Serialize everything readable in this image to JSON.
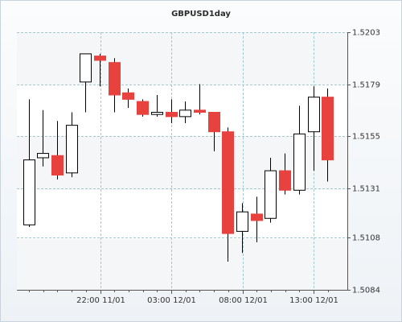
{
  "chart_data": {
    "type": "candlestick",
    "title": "GBPUSD1day",
    "y_ticks": [
      "1.5203",
      "1.5179",
      "1.5155",
      "1.5131",
      "1.5108",
      "1.5084"
    ],
    "y_tick_values": [
      1.5203,
      1.5179,
      1.5155,
      1.5131,
      1.5108,
      1.5084
    ],
    "ylim": [
      1.5084,
      1.5203
    ],
    "x_ticks": [
      "22:00 11/01",
      "03:00 12/01",
      "08:00 12/01",
      "13:00 12/01"
    ],
    "grid": true,
    "colors": {
      "up_fill": "#ffffff",
      "down_fill": "#e8423f",
      "wick": "#000000",
      "grid": "#9fc9cf"
    },
    "candles": [
      {
        "open": 1.5114,
        "high": 1.5172,
        "low": 1.5113,
        "close": 1.5144
      },
      {
        "open": 1.5145,
        "high": 1.5167,
        "low": 1.5141,
        "close": 1.5147
      },
      {
        "open": 1.5146,
        "high": 1.5162,
        "low": 1.5135,
        "close": 1.5137
      },
      {
        "open": 1.5138,
        "high": 1.5166,
        "low": 1.5136,
        "close": 1.516
      },
      {
        "open": 1.518,
        "high": 1.5193,
        "low": 1.5166,
        "close": 1.5193
      },
      {
        "open": 1.5192,
        "high": 1.5193,
        "low": 1.5178,
        "close": 1.519
      },
      {
        "open": 1.5189,
        "high": 1.5191,
        "low": 1.5166,
        "close": 1.5174
      },
      {
        "open": 1.5175,
        "high": 1.5177,
        "low": 1.5168,
        "close": 1.5172
      },
      {
        "open": 1.5171,
        "high": 1.5172,
        "low": 1.5164,
        "close": 1.5165
      },
      {
        "open": 1.5165,
        "high": 1.5174,
        "low": 1.5164,
        "close": 1.5166
      },
      {
        "open": 1.5166,
        "high": 1.5172,
        "low": 1.5161,
        "close": 1.5164
      },
      {
        "open": 1.5164,
        "high": 1.5171,
        "low": 1.5161,
        "close": 1.5167
      },
      {
        "open": 1.5167,
        "high": 1.5179,
        "low": 1.5165,
        "close": 1.5166
      },
      {
        "open": 1.5166,
        "high": 1.5166,
        "low": 1.5148,
        "close": 1.5157
      },
      {
        "open": 1.5157,
        "high": 1.5159,
        "low": 1.5097,
        "close": 1.511
      },
      {
        "open": 1.5111,
        "high": 1.5124,
        "low": 1.5101,
        "close": 1.512
      },
      {
        "open": 1.5119,
        "high": 1.5127,
        "low": 1.5106,
        "close": 1.5116
      },
      {
        "open": 1.5117,
        "high": 1.5145,
        "low": 1.5115,
        "close": 1.5139
      },
      {
        "open": 1.5139,
        "high": 1.5147,
        "low": 1.5128,
        "close": 1.513
      },
      {
        "open": 1.513,
        "high": 1.5169,
        "low": 1.5128,
        "close": 1.5156
      },
      {
        "open": 1.5157,
        "high": 1.5178,
        "low": 1.5139,
        "close": 1.5173
      },
      {
        "open": 1.5173,
        "high": 1.5177,
        "low": 1.5134,
        "close": 1.5144
      }
    ]
  }
}
